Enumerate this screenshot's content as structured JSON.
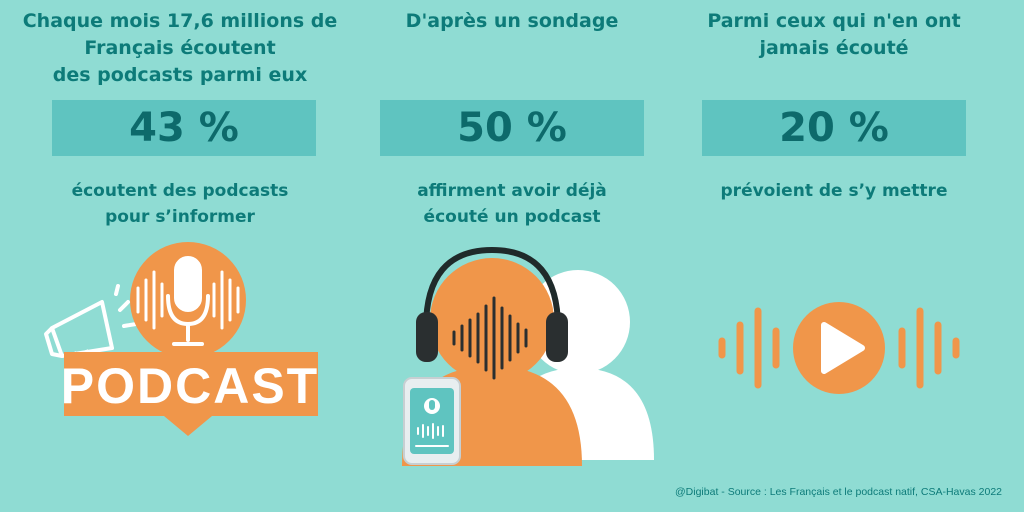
{
  "columns": [
    {
      "heading": "Chaque mois 17,6 millions de\nFrançais écoutent\ndes podcasts parmi eux",
      "value": "43 %",
      "description": "écoutent des podcasts\npour s’informer"
    },
    {
      "heading": "D'après un sondage",
      "value": "50 %",
      "description": "affirment avoir déjà\nécouté un podcast"
    },
    {
      "heading": "Parmi ceux qui n'en ont\njamais écouté",
      "value": "20 %",
      "description": "prévoient de s’y mettre"
    }
  ],
  "illustrations": {
    "podcast_label": "PODCAST",
    "icons": [
      "megaphone-icon",
      "microphone-icon",
      "headphones-icon",
      "smartphone-icon",
      "play-icon",
      "sound-wave-icon"
    ]
  },
  "footer": {
    "credit": "@Digibat - Source : Les Français et le podcast natif, CSA-Havas 2022"
  },
  "colors": {
    "background": "#8fdcd3",
    "accent_teal": "#0d7b79",
    "box": "#5fc4c0",
    "orange": "#f0964a",
    "white": "#ffffff"
  }
}
